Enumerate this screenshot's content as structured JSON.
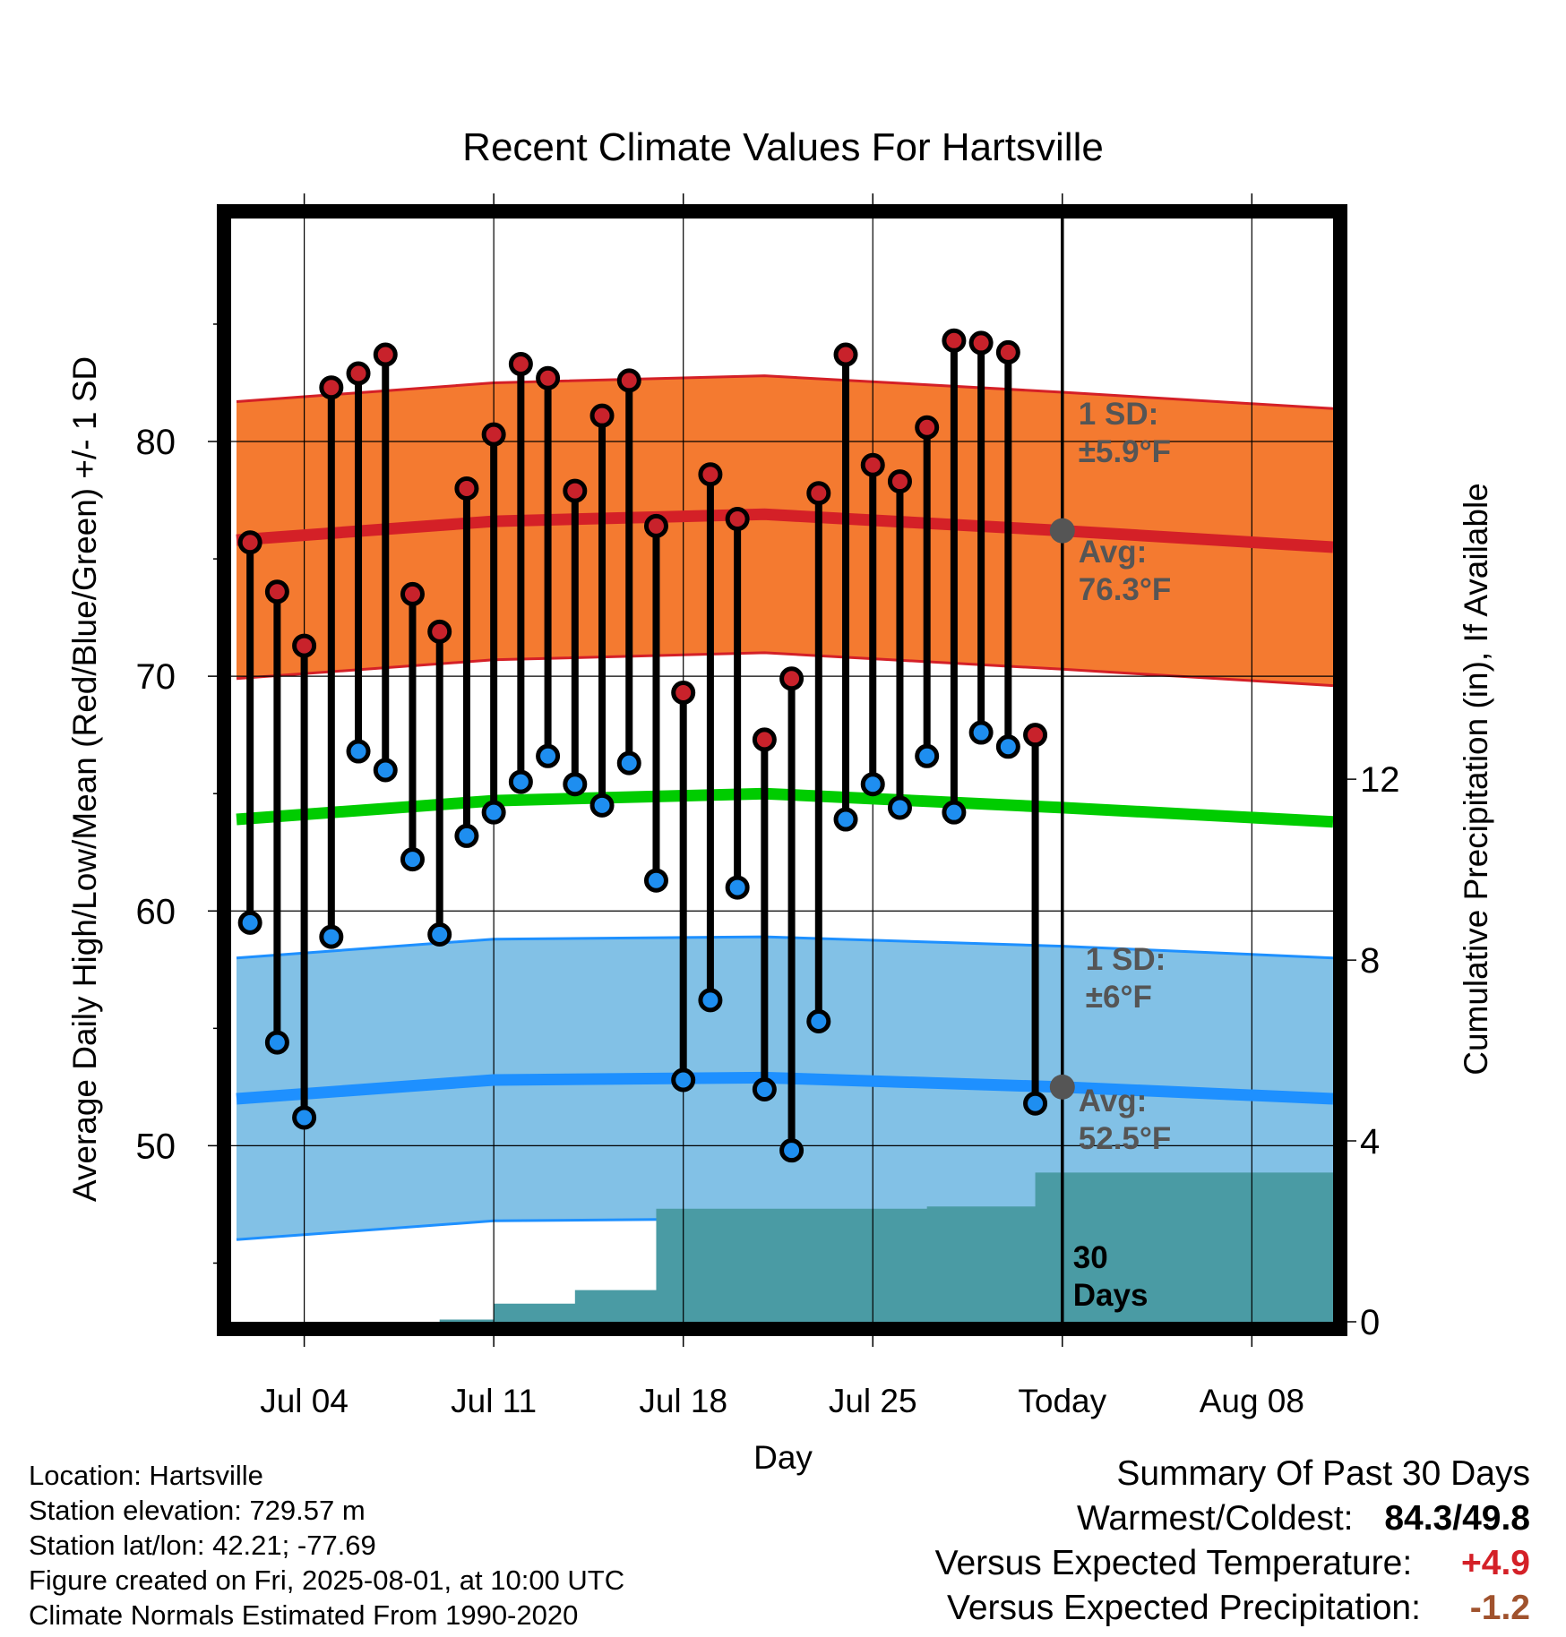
{
  "chart_data": {
    "type": "line",
    "title": "Recent Climate Values For Hartsville",
    "xlabel": "Day",
    "ylabel": "Average Daily High/Low/Mean (Red/Blue/Green) +/- 1 SD",
    "y2label": "Cumulative Precipitation (in), If Available",
    "x_ticks": [
      "Jul 04",
      "Jul 11",
      "Jul 18",
      "Jul 25",
      "Today",
      "Aug 08"
    ],
    "x_tick_days": [
      3,
      10,
      17,
      24,
      31,
      38
    ],
    "xlim": [
      0.3,
      41
    ],
    "y_ticks": [
      50,
      60,
      70,
      80
    ],
    "ylim": [
      42.5,
      89.5
    ],
    "y2_ticks": [
      0,
      4,
      8,
      12
    ],
    "y2lim": [
      0,
      24.4
    ],
    "grid": true,
    "today_day": 31,
    "days": [
      1,
      2,
      3,
      4,
      5,
      6,
      7,
      8,
      9,
      10,
      11,
      12,
      13,
      14,
      15,
      16,
      17,
      18,
      19,
      20,
      21,
      22,
      23,
      24,
      25,
      26,
      27,
      28,
      29,
      30
    ],
    "highs": [
      75.7,
      73.6,
      71.3,
      82.3,
      82.9,
      83.7,
      73.5,
      71.9,
      78.0,
      80.3,
      83.3,
      82.7,
      77.9,
      81.1,
      82.6,
      76.4,
      69.3,
      78.6,
      76.7,
      67.3,
      69.9,
      77.8,
      83.7,
      79.0,
      78.3,
      80.6,
      84.3,
      84.2,
      83.8,
      67.5
    ],
    "lows": [
      59.5,
      54.4,
      51.2,
      58.9,
      66.8,
      66.0,
      62.2,
      59.0,
      63.2,
      64.2,
      65.5,
      66.6,
      65.4,
      64.5,
      66.3,
      61.3,
      52.8,
      56.2,
      61.0,
      52.4,
      49.8,
      55.3,
      63.9,
      65.4,
      64.4,
      66.6,
      64.2,
      67.6,
      67.0,
      51.8
    ],
    "normal_high_days": [
      0.5,
      10,
      20,
      31,
      41
    ],
    "normal_high": [
      75.8,
      76.6,
      76.9,
      76.2,
      75.5
    ],
    "normal_high_sd": 5.9,
    "normal_low_days": [
      0.5,
      10,
      20,
      31,
      41
    ],
    "normal_low": [
      52.0,
      52.8,
      52.9,
      52.5,
      52.0
    ],
    "normal_low_sd": 6.0,
    "normal_mean_days": [
      0.5,
      10,
      20,
      31,
      41
    ],
    "normal_mean": [
      63.9,
      64.7,
      65.0,
      64.4,
      63.8
    ],
    "precip_days": [
      0.5,
      6,
      8,
      9,
      10,
      11,
      12,
      13,
      14,
      15,
      16,
      17,
      18,
      25,
      26,
      29,
      30,
      31,
      41
    ],
    "precip_cum": [
      0,
      0,
      0.05,
      0.05,
      0.4,
      0.4,
      0.4,
      0.7,
      0.7,
      0.7,
      2.5,
      2.5,
      2.5,
      2.5,
      2.55,
      2.55,
      3.3,
      3.3,
      3.3
    ],
    "high_sd_label": "1 SD:",
    "high_sd_value": "±5.9°F",
    "high_avg_label": "Avg:",
    "high_avg_value": "76.3°F",
    "low_sd_label": "1 SD:",
    "low_sd_value": "±6°F",
    "low_avg_label": "Avg:",
    "low_avg_value": "52.5°F",
    "days_label_num": "30",
    "days_label_word": "Days",
    "colors": {
      "high_band": "#F47A30",
      "high_line": "#D42027",
      "low_band": "#82C1E6",
      "low_line": "#1E90FF",
      "mean_line": "#00CC00",
      "precip": "#4A9BA4",
      "high_dot": "#C8222B",
      "low_dot": "#1E8EF0",
      "annotation": "#555555",
      "today_dot": "#555555"
    }
  },
  "footer": {
    "location": "Location: Hartsville",
    "elevation": "Station elevation: 729.57 m",
    "latlon": "Station lat/lon: 42.21; -77.69",
    "created": "Figure created on Fri, 2025-08-01, at 10:00 UTC",
    "normals": "Climate Normals Estimated From 1990-2020"
  },
  "summary": {
    "title": "Summary Of Past 30 Days",
    "warm_cold_label": "Warmest/Coldest:",
    "warm_cold_value": "84.3/49.8",
    "temp_label": "Versus Expected Temperature:",
    "temp_value": "+4.9",
    "precip_label": "Versus Expected Precipitation:",
    "precip_value": "-1.2",
    "temp_color": "#D42027",
    "precip_color": "#A0522D"
  }
}
